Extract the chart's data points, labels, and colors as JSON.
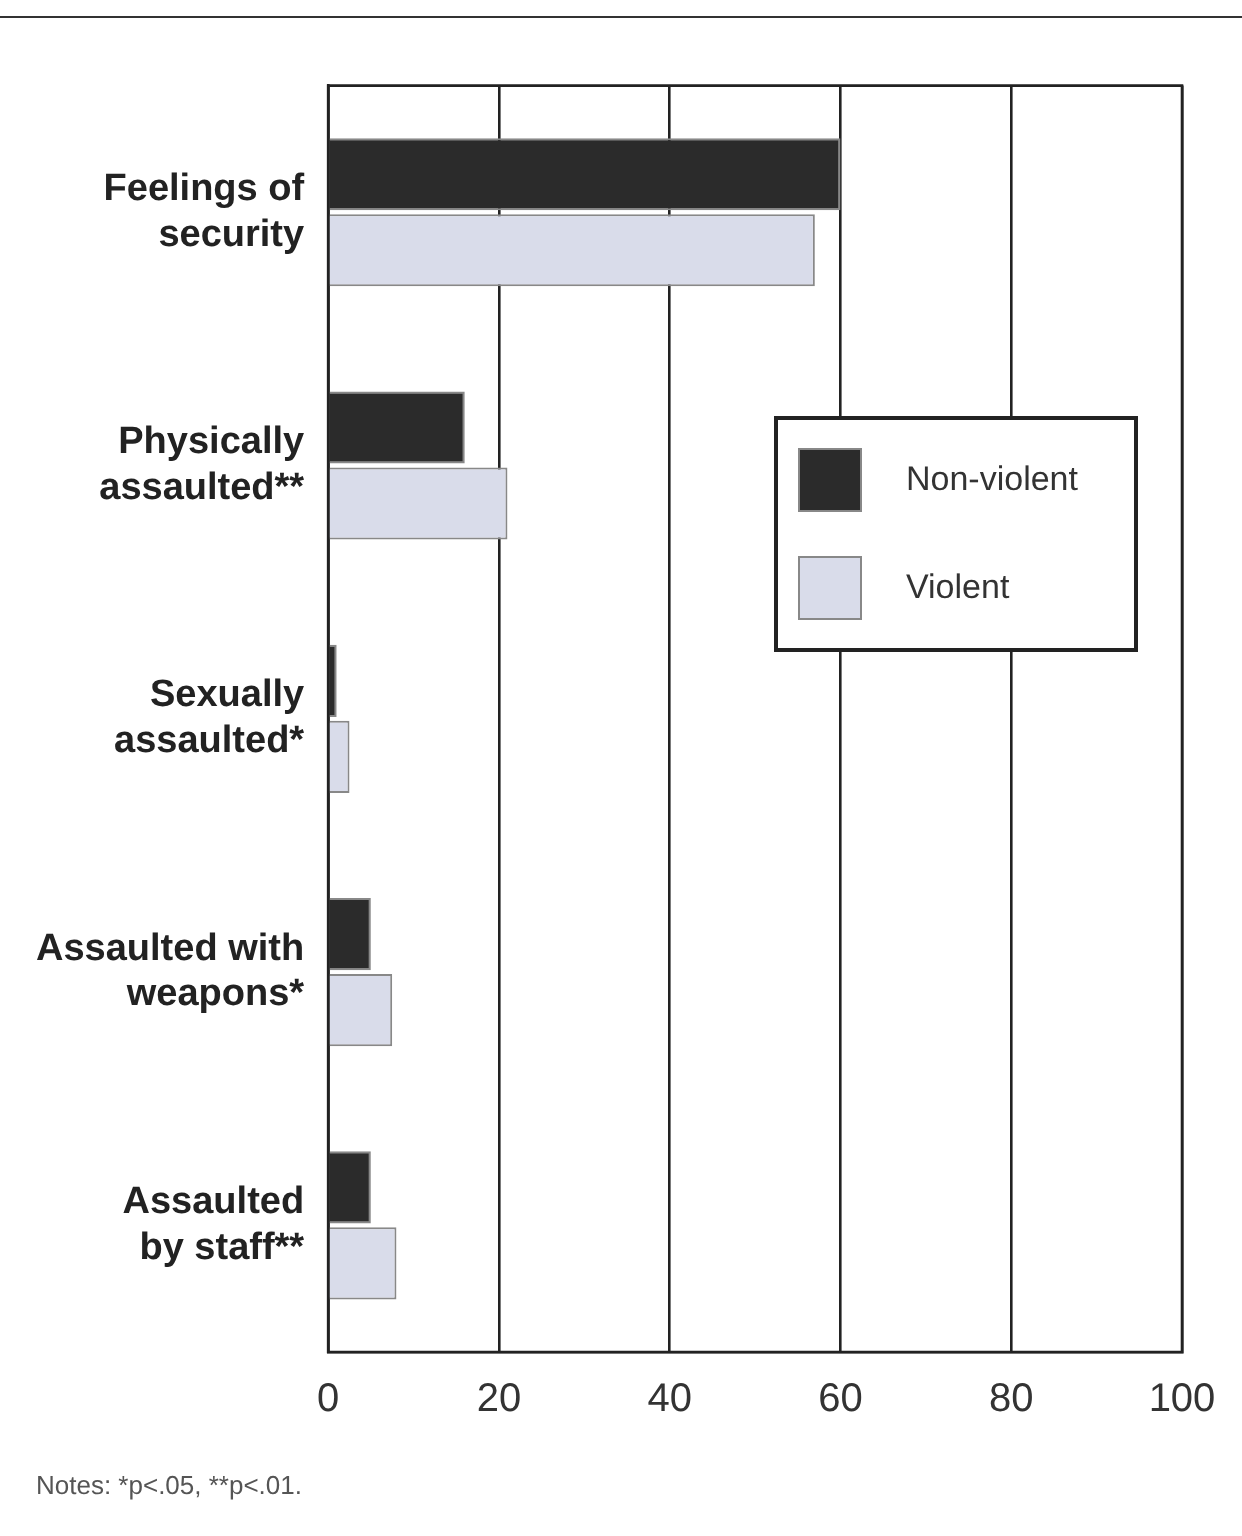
{
  "chart_data": {
    "type": "bar",
    "orientation": "horizontal",
    "categories": [
      "Feelings of\nsecurity",
      "Physically\nassaulted**",
      "Sexually\nassaulted*",
      "Assaulted with\nweapons*",
      "Assaulted\nby staff**"
    ],
    "series": [
      {
        "name": "Non-violent",
        "color": "#2b2b2b",
        "values": [
          60,
          16,
          1,
          5,
          5
        ]
      },
      {
        "name": "Violent",
        "color": "#d9dcea",
        "values": [
          57,
          21,
          2.5,
          7.5,
          8
        ]
      }
    ],
    "xlim": [
      0,
      100
    ],
    "xticks": [
      0,
      20,
      40,
      60,
      80,
      100
    ],
    "grid": "x",
    "legend": "top right",
    "annotations": [
      "Notes:  *p<.05, **p<.01."
    ]
  }
}
